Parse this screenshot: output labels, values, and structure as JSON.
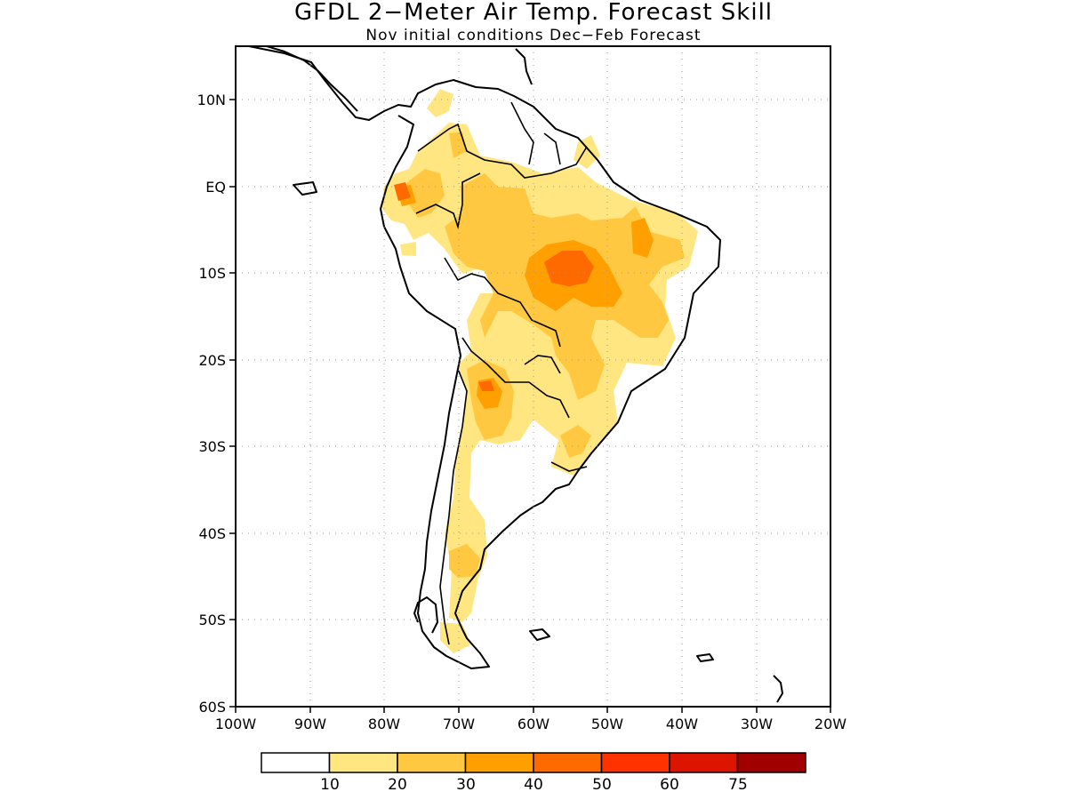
{
  "figure": {
    "title": "GFDL 2−Meter Air Temp. Forecast Skill",
    "subtitle": "Nov initial conditions  Dec−Feb Forecast"
  },
  "axes": {
    "lat_labels": [
      "10N",
      "EQ",
      "10S",
      "20S",
      "30S",
      "40S",
      "50S",
      "60S"
    ],
    "lon_labels": [
      "100W",
      "90W",
      "80W",
      "70W",
      "60W",
      "50W",
      "40W",
      "30W",
      "20W"
    ],
    "lat_range": [
      -60,
      15.9
    ],
    "lon_range": [
      -100,
      -20
    ],
    "grid": "dotted"
  },
  "colorbar": {
    "colors": [
      "#ffffff",
      "#ffe680",
      "#ffc840",
      "#ffa000",
      "#ff6a00",
      "#ff3200",
      "#dc1400",
      "#a00000"
    ],
    "tick_labels": [
      "10",
      "20",
      "30",
      "40",
      "50",
      "60",
      "75"
    ]
  },
  "map_colors": {
    "skill_10_20": "#ffe680",
    "skill_20_30": "#ffc840",
    "skill_30_40": "#ffa000",
    "skill_40_50": "#ff6a00"
  }
}
